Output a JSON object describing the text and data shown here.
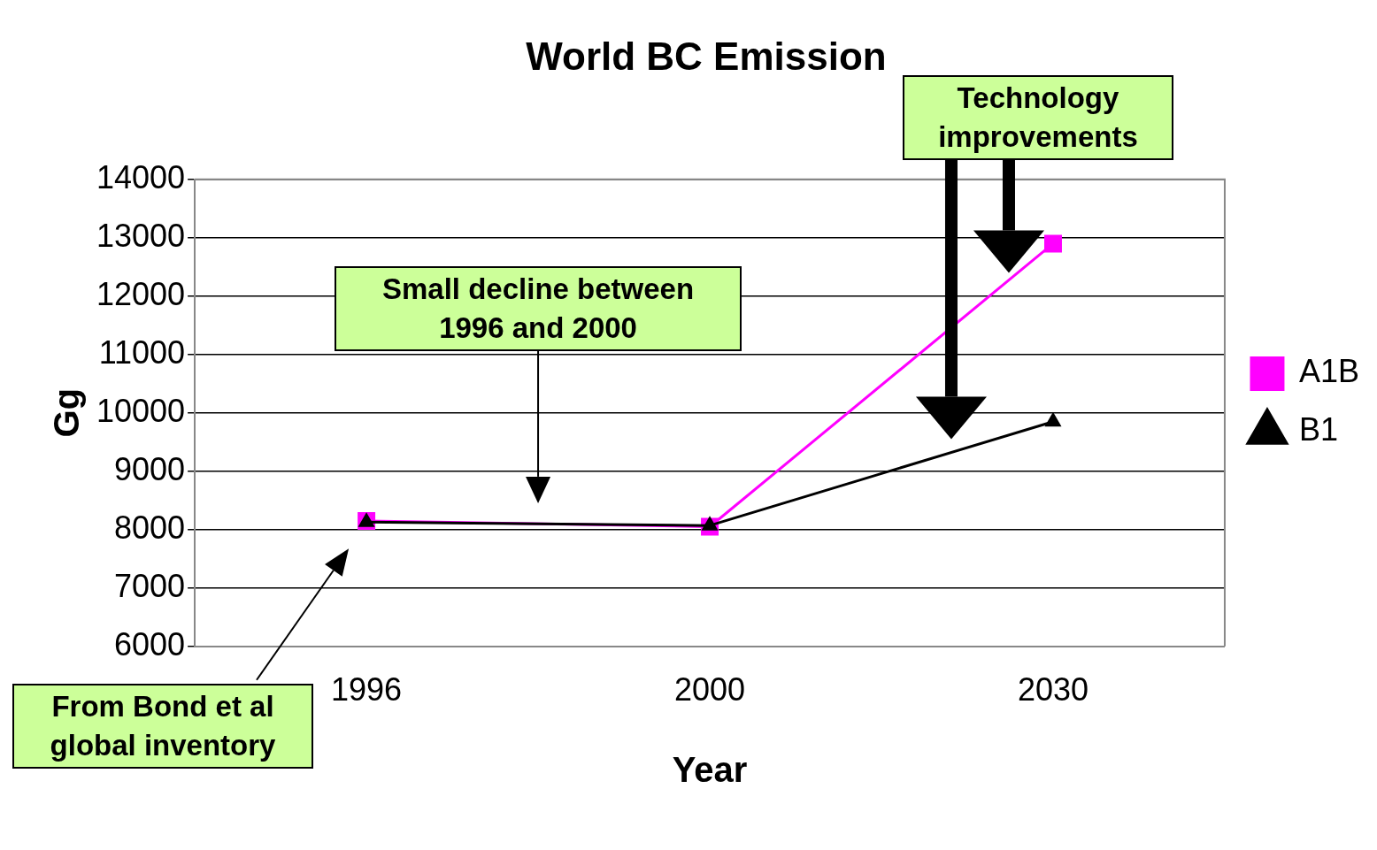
{
  "chart_data": {
    "type": "line",
    "title": "World BC Emission",
    "xlabel": "Year",
    "ylabel": "Gg",
    "categories": [
      "1996",
      "2000",
      "2030"
    ],
    "series": [
      {
        "name": "A1B",
        "color": "#ff00ff",
        "marker": "square",
        "values": [
          8150,
          8050,
          12900
        ]
      },
      {
        "name": "B1",
        "color": "#000000",
        "marker": "triangle",
        "values": [
          8130,
          8070,
          9850
        ]
      }
    ],
    "ylim": [
      6000,
      14000
    ],
    "yticks": [
      6000,
      7000,
      8000,
      9000,
      10000,
      11000,
      12000,
      13000,
      14000
    ],
    "grid": "y",
    "legend": "right",
    "annotations": [
      "Small decline between 1996 and 2000",
      "Technology improvements",
      "From Bond et al global inventory"
    ]
  }
}
